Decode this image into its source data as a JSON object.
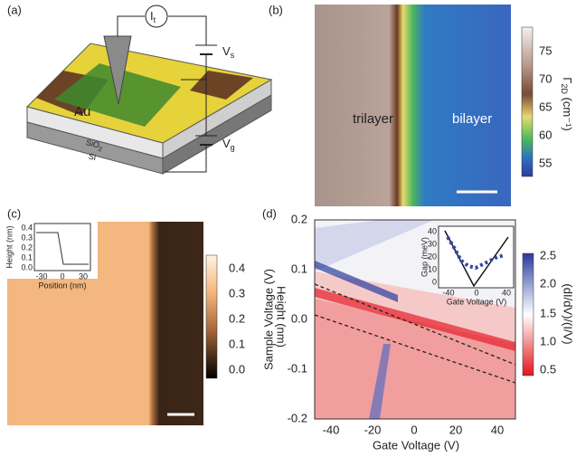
{
  "a": {
    "label": "(a)",
    "current": "I",
    "current_sub": "t",
    "vs": "V",
    "vs_sub": "s",
    "vg": "V",
    "vg_sub": "g",
    "au": "Au",
    "sio2": "SiO",
    "sio2_sub": "2",
    "si": "Si"
  },
  "b": {
    "label": "(b)",
    "trilayer": "trilayer",
    "bilayer": "bilayer",
    "colorbar_label": "Γ",
    "colorbar_label_sub": "2D",
    "colorbar_unit": " (cm⁻¹)",
    "ticks": [
      "75",
      "70",
      "65",
      "60",
      "55"
    ]
  },
  "c": {
    "label": "(c)",
    "colorbar_label": "Height (nm)",
    "ticks": [
      "0.4",
      "0.3",
      "0.2",
      "0.1",
      "0.0"
    ],
    "inset": {
      "ylabel": "Height (nm)",
      "xlabel": "Position (nm)",
      "yticks": [
        "0.4",
        "0.3",
        "0.2",
        "0.1",
        "0.0"
      ],
      "xticks": [
        "-30",
        "0",
        "30"
      ]
    }
  },
  "d": {
    "label": "(d)",
    "xlabel": "Gate Voltage (V)",
    "ylabel": "Sample Voltage (V)",
    "xticks": [
      "-40",
      "-20",
      "0",
      "20",
      "40"
    ],
    "yticks": [
      "0.2",
      "0.1",
      "0.0",
      "-0.1",
      "-0.2"
    ],
    "colorbar_label": "(dI/dV)/(I/V)",
    "ticks": [
      "2.5",
      "2.0",
      "1.5",
      "1.0",
      "0.5"
    ],
    "inset": {
      "ylabel": "Gap (meV)",
      "xlabel": "Gate Voltage (V)",
      "yticks": [
        "40",
        "30",
        "20",
        "10",
        "0"
      ],
      "xticks": [
        "-40",
        "0",
        "40"
      ]
    }
  }
}
